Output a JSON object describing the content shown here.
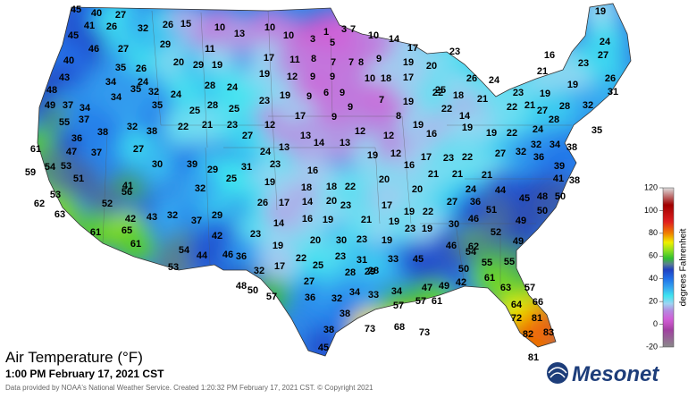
{
  "title": "Air Temperature (°F)",
  "subtitle": "1:00 PM February 17, 2021 CST",
  "credit": "Data provided by NOAA's National Weather Service. Created 1:20:32 PM February 17, 2021 CST. © Copyright 2021",
  "logo": "Mesonet",
  "colorbar": {
    "label": "degrees Fahrenheit",
    "lim": [
      -20,
      120
    ],
    "ticks": [
      -20,
      0,
      20,
      40,
      60,
      80,
      100,
      120
    ]
  },
  "stations": [
    45,
    40,
    27,
    41,
    26,
    32,
    26,
    15,
    10,
    13,
    10,
    10,
    1,
    3,
    7,
    10,
    14,
    19,
    45,
    29,
    11,
    3,
    5,
    17,
    23,
    24,
    46,
    27,
    40,
    35,
    26,
    20,
    29,
    19,
    17,
    11,
    8,
    7,
    7,
    8,
    9,
    19,
    20,
    16,
    23,
    27,
    43,
    34,
    24,
    28,
    24,
    19,
    12,
    9,
    9,
    10,
    18,
    17,
    25,
    26,
    24,
    21,
    26,
    48,
    35,
    32,
    24,
    23,
    19,
    9,
    6,
    9,
    7,
    19,
    22,
    18,
    21,
    23,
    19,
    31,
    19,
    49,
    37,
    34,
    34,
    35,
    25,
    28,
    25,
    9,
    8,
    22,
    14,
    22,
    21,
    27,
    28,
    32,
    55,
    37,
    32,
    38,
    22,
    21,
    23,
    12,
    17,
    9,
    12,
    12,
    19,
    16,
    19,
    19,
    22,
    24,
    28,
    35,
    61,
    36,
    38,
    27,
    13,
    14,
    13,
    32,
    34,
    38,
    53,
    47,
    37,
    27,
    24,
    13,
    19,
    12,
    16,
    17,
    23,
    22,
    27,
    32,
    36,
    59,
    54,
    30,
    39,
    29,
    31,
    23,
    16,
    21,
    21,
    21,
    39,
    41,
    38,
    51,
    41,
    25,
    19,
    18,
    18,
    22,
    20,
    20,
    24,
    44,
    45,
    48,
    50,
    32,
    53,
    56,
    26,
    17,
    14,
    20,
    23,
    17,
    19,
    22,
    27,
    36,
    51,
    50,
    62,
    52,
    63,
    42,
    43,
    32,
    37,
    29,
    14,
    16,
    19,
    21,
    19,
    30,
    46,
    49,
    61,
    65,
    42,
    23,
    20,
    30,
    23,
    19,
    23,
    19,
    46,
    62,
    52,
    49,
    61,
    54,
    44,
    46,
    36,
    19,
    22,
    25,
    23,
    31,
    29,
    33,
    45,
    54,
    53,
    32,
    17,
    28,
    28,
    50,
    55,
    55,
    48,
    50,
    57,
    27,
    36,
    32,
    34,
    33,
    34,
    47,
    49,
    42,
    61,
    63,
    57,
    57,
    57,
    61,
    66,
    64,
    81,
    72,
    38,
    38,
    73,
    68,
    73,
    82,
    83,
    45,
    81
  ]
}
